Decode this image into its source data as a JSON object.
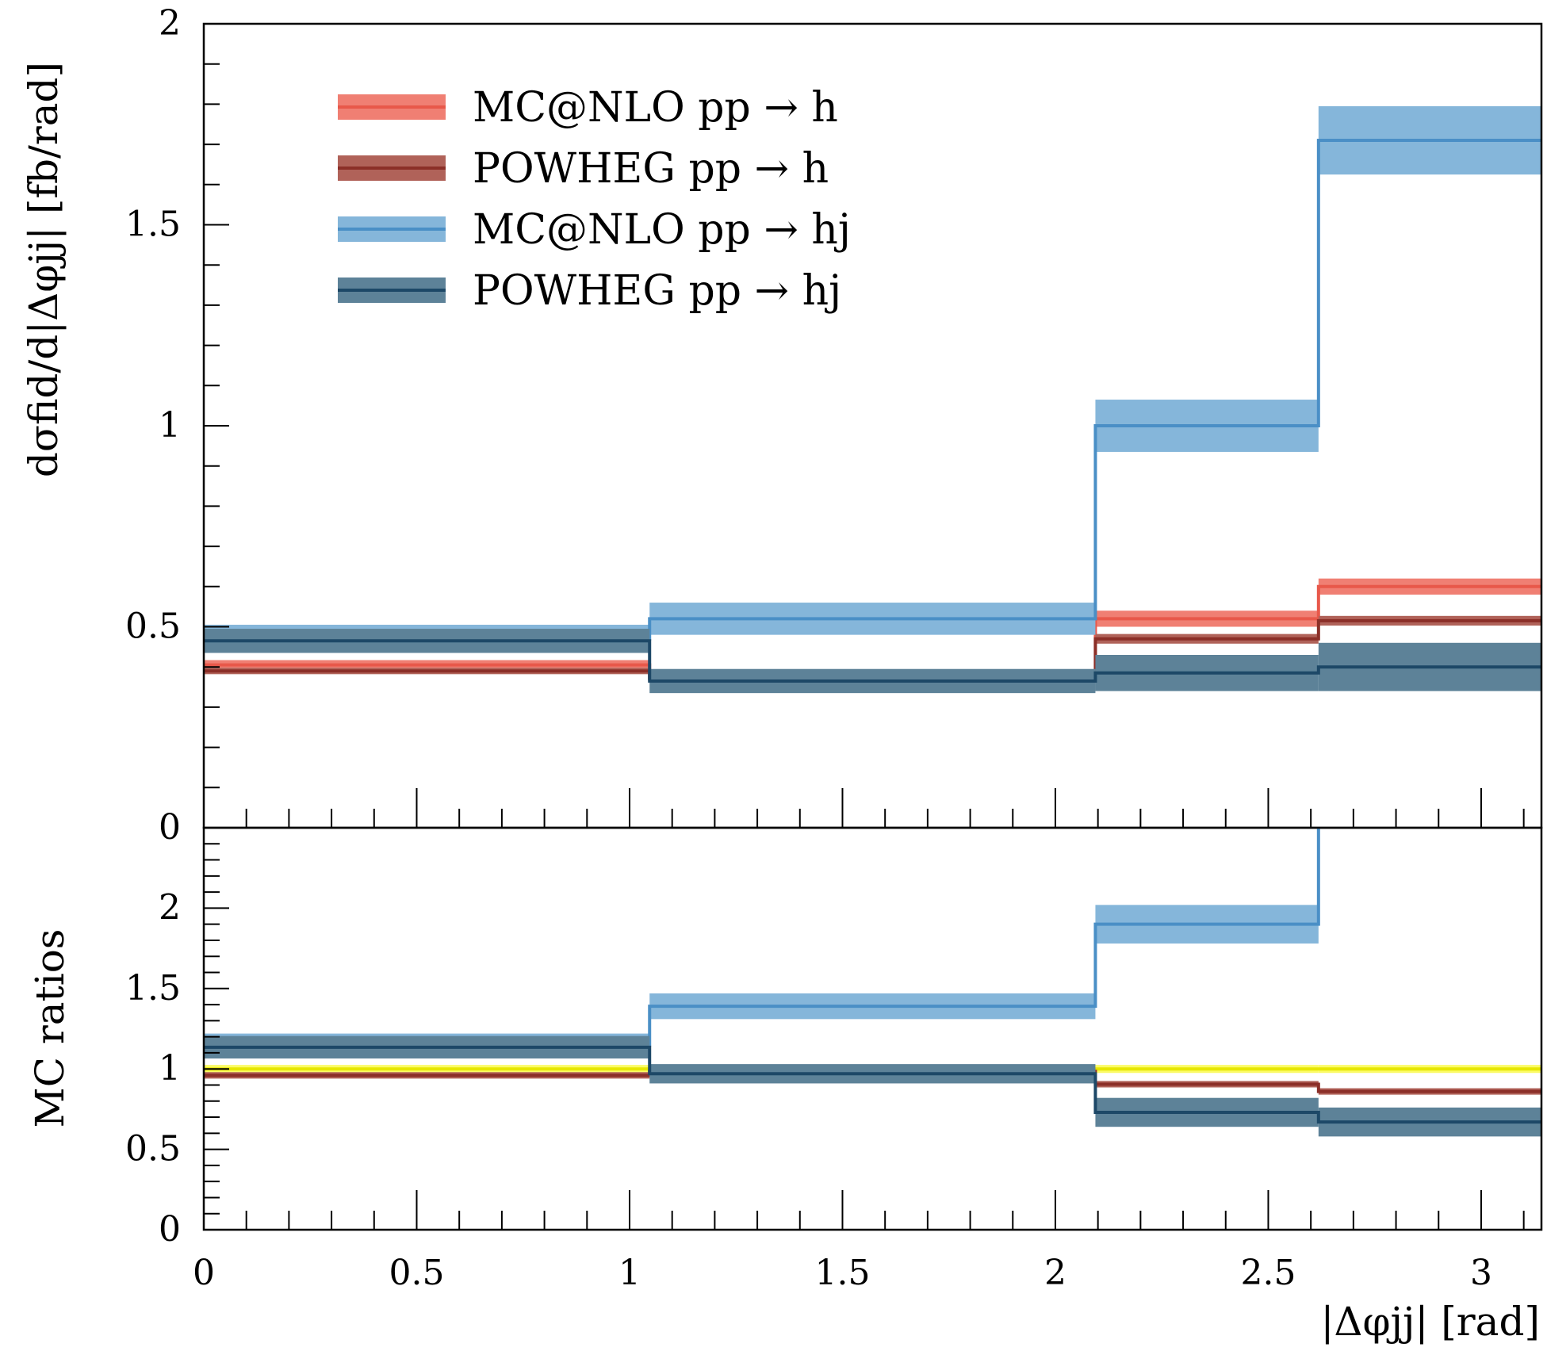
{
  "chart_data": {
    "type": "step",
    "xlabel": "|Δφjj| [rad]",
    "bins": [
      0,
      1.047,
      2.094,
      2.618,
      3.1416
    ],
    "main": {
      "ylabel": "dσfid/d|Δφjj| [fb/rad]",
      "ylim": [
        0,
        2
      ],
      "yticks": [
        "0",
        "0.5",
        "1",
        "1.5",
        "2"
      ],
      "series": [
        {
          "name": "MC@NLO pp → h",
          "color": "#e8584a",
          "band": "#f07f73",
          "values": [
            0.405,
            0.375,
            0.52,
            0.6
          ],
          "err": [
            0.012,
            0.01,
            0.02,
            0.02
          ]
        },
        {
          "name": "POWHEG pp → h",
          "color": "#8b2f28",
          "band": "#b06259",
          "values": [
            0.39,
            0.37,
            0.47,
            0.515
          ],
          "err": [
            0.008,
            0.008,
            0.012,
            0.012
          ]
        },
        {
          "name": "MC@NLO pp → hj",
          "color": "#4a8fc6",
          "band": "#85b6da",
          "values": [
            0.47,
            0.52,
            1.0,
            1.71
          ],
          "err": [
            0.035,
            0.04,
            0.065,
            0.085
          ]
        },
        {
          "name": "POWHEG pp → hj",
          "color": "#1d4867",
          "band": "#5d8298",
          "values": [
            0.465,
            0.365,
            0.385,
            0.4
          ],
          "err": [
            0.03,
            0.03,
            0.045,
            0.06
          ]
        }
      ]
    },
    "ratio": {
      "ylabel": "MC ratios",
      "ylim": [
        0,
        2.5
      ],
      "yticks": [
        "0",
        "0.5",
        "1",
        "1.5",
        "2"
      ],
      "reference": {
        "color": "#e6e600",
        "band": "#fbfb66",
        "values": [
          1,
          1,
          1,
          1
        ],
        "err": [
          0.025,
          0.025,
          0.025,
          0.025
        ]
      },
      "series": [
        {
          "color": "#8b2f28",
          "band": "#b06259",
          "values": [
            0.96,
            0.985,
            0.905,
            0.86
          ],
          "err": [
            0.02,
            0.02,
            0.02,
            0.02
          ]
        },
        {
          "color": "#4a8fc6",
          "band": "#85b6da",
          "values": [
            1.15,
            1.39,
            1.9,
            2.9
          ],
          "err": [
            0.07,
            0.08,
            0.12,
            0.14
          ]
        },
        {
          "color": "#1d4867",
          "band": "#5d8298",
          "values": [
            1.135,
            0.97,
            0.73,
            0.67
          ],
          "err": [
            0.07,
            0.06,
            0.09,
            0.09
          ]
        }
      ]
    },
    "xticks": [
      "0",
      "0.5",
      "1",
      "1.5",
      "2",
      "2.5",
      "3"
    ],
    "legend_position": "top-left"
  }
}
